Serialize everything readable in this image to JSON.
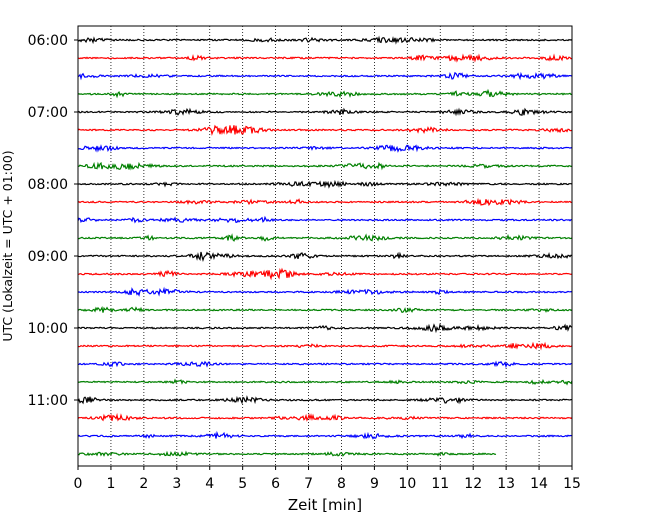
{
  "chart_data": {
    "type": "line",
    "title": "",
    "xlabel": "Zeit  [min]",
    "ylabel": "UTC (Lokalzeit = UTC + 01:00)",
    "xlim": [
      0,
      15
    ],
    "xticks": [
      0,
      1,
      2,
      3,
      4,
      5,
      6,
      7,
      8,
      9,
      10,
      11,
      12,
      13,
      14,
      15
    ],
    "xtick_labels": [
      "0",
      "1",
      "2",
      "3",
      "4",
      "5",
      "6",
      "7",
      "8",
      "9",
      "10",
      "11",
      "12",
      "13",
      "14",
      "15"
    ],
    "ytick_labels": [
      "06:00",
      "07:00",
      "08:00",
      "09:00",
      "10:00",
      "11:00"
    ],
    "grid_x": true,
    "grid_style": "dotted",
    "trace_interval_minutes": 15,
    "start_time": "06:00",
    "colors_cycle": [
      "#000000",
      "#ff0000",
      "#0000ff",
      "#008000"
    ],
    "traces": [
      {
        "time": "06:00",
        "color": "#000000",
        "end_min": 15
      },
      {
        "time": "06:15",
        "color": "#ff0000",
        "end_min": 15
      },
      {
        "time": "06:30",
        "color": "#0000ff",
        "end_min": 15
      },
      {
        "time": "06:45",
        "color": "#008000",
        "end_min": 15
      },
      {
        "time": "07:00",
        "color": "#000000",
        "end_min": 15
      },
      {
        "time": "07:15",
        "color": "#ff0000",
        "end_min": 15
      },
      {
        "time": "07:30",
        "color": "#0000ff",
        "end_min": 15
      },
      {
        "time": "07:45",
        "color": "#008000",
        "end_min": 15
      },
      {
        "time": "08:00",
        "color": "#000000",
        "end_min": 15
      },
      {
        "time": "08:15",
        "color": "#ff0000",
        "end_min": 15
      },
      {
        "time": "08:30",
        "color": "#0000ff",
        "end_min": 15
      },
      {
        "time": "08:45",
        "color": "#008000",
        "end_min": 15
      },
      {
        "time": "09:00",
        "color": "#000000",
        "end_min": 15
      },
      {
        "time": "09:15",
        "color": "#ff0000",
        "end_min": 15
      },
      {
        "time": "09:30",
        "color": "#0000ff",
        "end_min": 15
      },
      {
        "time": "09:45",
        "color": "#008000",
        "end_min": 15
      },
      {
        "time": "10:00",
        "color": "#000000",
        "end_min": 15
      },
      {
        "time": "10:15",
        "color": "#ff0000",
        "end_min": 15
      },
      {
        "time": "10:30",
        "color": "#0000ff",
        "end_min": 15
      },
      {
        "time": "10:45",
        "color": "#008000",
        "end_min": 15
      },
      {
        "time": "11:00",
        "color": "#000000",
        "end_min": 15
      },
      {
        "time": "11:15",
        "color": "#ff0000",
        "end_min": 15
      },
      {
        "time": "11:30",
        "color": "#0000ff",
        "end_min": 15
      },
      {
        "time": "11:45",
        "color": "#008000",
        "end_min": 12.7
      }
    ]
  }
}
